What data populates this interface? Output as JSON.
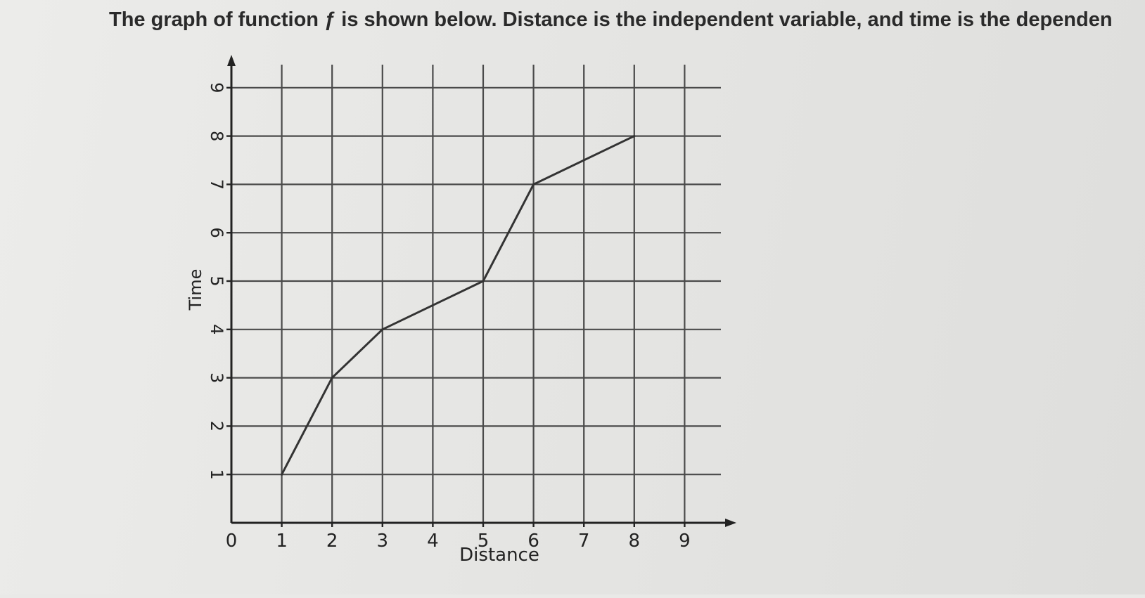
{
  "question": {
    "text": "The graph of function ƒ is shown below. Distance is the independent variable, and time is the dependen"
  },
  "chart_data": {
    "type": "line",
    "title": "",
    "xlabel": "Distance",
    "ylabel": "Time",
    "xlim": [
      0,
      9
    ],
    "ylim": [
      0,
      9
    ],
    "x_ticks": [
      "0",
      "1",
      "2",
      "3",
      "4",
      "5",
      "6",
      "7",
      "8",
      "9"
    ],
    "y_ticks": [
      "1",
      "2",
      "3",
      "4",
      "5",
      "6",
      "7",
      "8",
      "9"
    ],
    "grid": true,
    "series": [
      {
        "x": [
          1,
          2,
          3,
          5,
          6,
          8
        ],
        "y": [
          1,
          3,
          4,
          5,
          7,
          8
        ]
      }
    ],
    "colors": {
      "line": "#333333",
      "grid": "#4a4a4a",
      "text": "#222222"
    }
  }
}
